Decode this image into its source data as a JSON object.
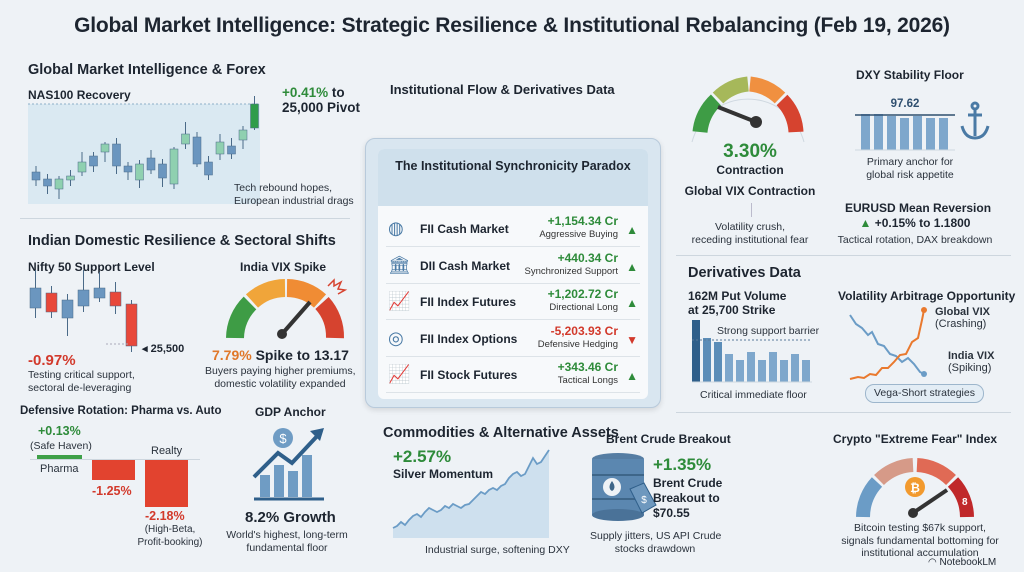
{
  "title": "Global Market Intelligence: Strategic Resilience & Institutional Rebalancing (Feb 19, 2026)",
  "forex": {
    "heading": "Global Market Intelligence & Forex",
    "nas_title": "NAS100 Recovery",
    "nas_change": "+0.41%",
    "nas_to": " to",
    "nas_pivot": "25,000 Pivot",
    "nas_note_1": "Tech rebound hopes,",
    "nas_note_2": "European industrial drags"
  },
  "indian": {
    "heading": "Indian Domestic Resilience & Sectoral Shifts",
    "nifty_title": "Nifty 50 Support Level",
    "nifty_level": "25,500",
    "nifty_change": "-0.97%",
    "nifty_desc_1": "Testing critical support,",
    "nifty_desc_2": "sectoral de-leveraging",
    "vix_title": "India VIX Spike",
    "vix_change": "7.79%",
    "vix_text": " Spike to 13.17",
    "vix_desc_1": "Buyers paying higher premiums,",
    "vix_desc_2": "domestic volatility expanded"
  },
  "rotation": {
    "heading": "Defensive Rotation: Pharma vs. Auto",
    "pharma_value": "+0.13%",
    "pharma_note": "(Safe Haven)",
    "pharma_label": "Pharma",
    "auto_value": "-1.25%",
    "realty_label": "Realty",
    "realty_value": "-2.18%",
    "realty_note_1": "(High-Beta,",
    "realty_note_2": "Profit-booking)",
    "values": [
      0.13,
      -1.25,
      -2.18
    ]
  },
  "gdp": {
    "heading": "GDP Anchor",
    "value": "8.2% Growth",
    "desc_1": "World's highest, long-term",
    "desc_2": "fundamental floor",
    "icon": "dollar-growth-chart-icon"
  },
  "flow": {
    "heading": "Institutional Flow & Derivatives Data",
    "panel_title": "The Institutional Synchronicity Paradox",
    "rows": [
      {
        "label": "FII Cash Market",
        "value": "+1,154.34 Cr",
        "note": "Aggressive Buying",
        "direction": "up",
        "icon": "globe-icon"
      },
      {
        "label": "DII Cash Market",
        "value": "+440.34 Cr",
        "note": "Synchronized Support",
        "direction": "up",
        "icon": "bank-icon"
      },
      {
        "label": "FII Index Futures",
        "value": "+1,202.72 Cr",
        "note": "Directional Long",
        "direction": "up",
        "icon": "bar-chart-up-icon"
      },
      {
        "label": "FII Index Options",
        "value": "-5,203.93 Cr",
        "note": "Defensive Hedging",
        "direction": "down",
        "icon": "coins-icon"
      },
      {
        "label": "FII Stock Futures",
        "value": "+343.46 Cr",
        "note": "Tactical Longs",
        "direction": "up",
        "icon": "bar-chart-up-icon"
      }
    ]
  },
  "global_vix": {
    "value": "3.30%",
    "value_label": "Contraction",
    "heading": "Global VIX Contraction",
    "desc_1": "Volatility crush,",
    "desc_2": "receding institutional fear"
  },
  "dxy": {
    "heading": "DXY Stability Floor",
    "value": "97.62",
    "desc_1": "Primary anchor for",
    "desc_2": "global risk appetite",
    "icon": "anchor-icon"
  },
  "eurusd": {
    "heading": "EURUSD Mean Reversion",
    "value": "+0.15% to 1.1800",
    "desc": "Tactical rotation, DAX breakdown"
  },
  "derivatives": {
    "heading": "Derivatives Data",
    "put_title_1": "162M Put Volume",
    "put_title_2": "at 25,700 Strike",
    "barrier": "Strong support barrier",
    "floor": "Critical immediate floor"
  },
  "vol_arb": {
    "heading": "Volatility Arbitrage Opportunity",
    "global_label": "Global VIX",
    "global_note": "(Crashing)",
    "india_label": "India VIX",
    "india_note": "(Spiking)",
    "strategy": "Vega-Short strategies"
  },
  "commodities": {
    "heading": "Commodities & Alternative Assets",
    "silver_change": "+2.57%",
    "silver_label": "Silver Momentum",
    "silver_desc": "Industrial surge, softening DXY"
  },
  "brent": {
    "heading": "Brent Crude Breakout",
    "change": "+1.35%",
    "text_1": "Brent Crude",
    "text_2": "Breakout to",
    "text_3": "$70.55",
    "desc_1": "Supply jitters, US API Crude",
    "desc_2": "stocks drawdown"
  },
  "crypto": {
    "heading": "Crypto \"Extreme Fear\" Index",
    "index_value": "8",
    "desc_1": "Bitcoin testing $67k support,",
    "desc_2": "signals fundamental bottoming for",
    "desc_3": "institutional accumulation"
  },
  "branding": {
    "label": "NotebookLM"
  },
  "colors": {
    "green": "#2e8b3a",
    "red": "#d2392b",
    "orange": "#e0782a",
    "blue": "#5b8db8",
    "background": "#eef2f6"
  }
}
